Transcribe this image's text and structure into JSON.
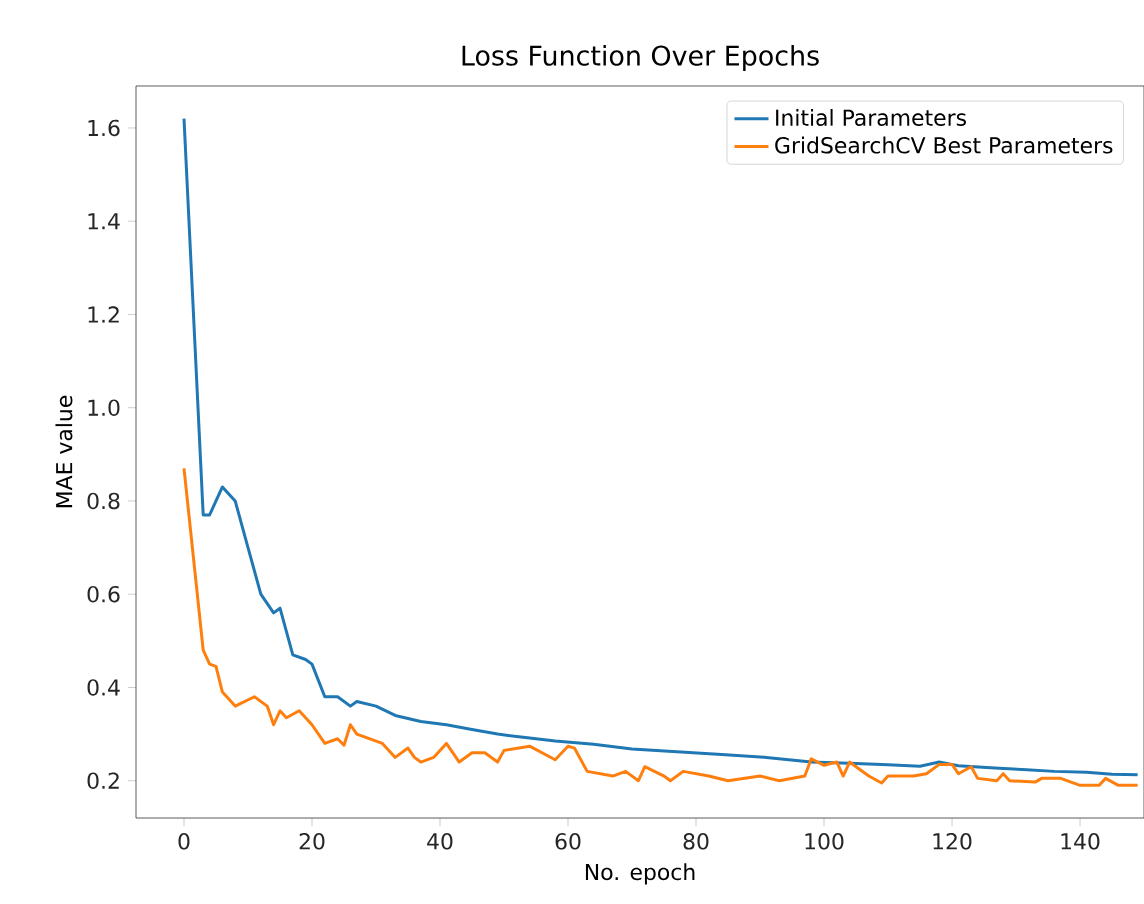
{
  "chart_data": {
    "type": "line",
    "title": "Loss Function Over Epochs",
    "xlabel": "No. epoch",
    "ylabel": "MAE value",
    "xlim": [
      -7.5,
      150
    ],
    "ylim": [
      0.12,
      1.69
    ],
    "xticks": [
      0,
      20,
      40,
      60,
      80,
      100,
      120,
      140
    ],
    "yticks": [
      0.2,
      0.4,
      0.6,
      0.8,
      {
        "value": 1.0,
        "label": "1.0"
      },
      1.2,
      1.4,
      1.6
    ],
    "grid": false,
    "legend": "top right",
    "marker": "none",
    "line_style": "solid",
    "series": [
      {
        "name": "Initial Parameters",
        "color": "#1f77b4",
        "x": [
          0,
          3,
          4,
          6,
          8,
          10,
          12,
          14,
          15,
          17,
          19,
          20,
          22,
          24,
          26,
          27,
          30,
          33,
          37,
          41,
          45,
          49,
          53,
          58,
          64,
          70,
          77,
          84,
          91,
          98,
          105,
          110,
          115,
          118,
          121,
          126,
          131,
          136,
          141,
          145,
          149
        ],
        "values": [
          1.62,
          0.77,
          0.77,
          0.83,
          0.8,
          0.7,
          0.6,
          0.56,
          0.57,
          0.47,
          0.46,
          0.45,
          0.38,
          0.38,
          0.36,
          0.37,
          0.36,
          0.34,
          0.327,
          0.32,
          0.31,
          0.3,
          0.293,
          0.285,
          0.278,
          0.268,
          0.262,
          0.256,
          0.25,
          0.24,
          0.237,
          0.234,
          0.231,
          0.24,
          0.232,
          0.228,
          0.224,
          0.22,
          0.218,
          0.214,
          0.213
        ]
      },
      {
        "name": "GridSearchCV Best Parameters",
        "color": "#ff7f0e",
        "x": [
          0,
          3,
          4,
          5,
          6,
          8,
          11,
          13,
          14,
          15,
          16,
          18,
          20,
          22,
          24,
          25,
          26,
          27,
          31,
          33,
          35,
          36,
          37,
          39,
          41,
          43,
          45,
          47,
          49,
          50,
          54,
          58,
          60,
          61,
          63,
          67,
          69,
          71,
          72,
          75,
          76,
          78,
          82,
          85,
          90,
          93,
          97,
          98,
          100,
          102,
          103,
          104,
          107,
          109,
          110,
          114,
          116,
          118,
          120,
          121,
          123,
          124,
          127,
          128,
          129,
          133,
          134,
          137,
          140,
          143,
          144,
          146,
          149
        ],
        "values": [
          0.87,
          0.48,
          0.45,
          0.445,
          0.39,
          0.36,
          0.38,
          0.36,
          0.32,
          0.35,
          0.335,
          0.35,
          0.32,
          0.28,
          0.29,
          0.276,
          0.32,
          0.3,
          0.28,
          0.25,
          0.27,
          0.25,
          0.24,
          0.25,
          0.28,
          0.24,
          0.26,
          0.26,
          0.24,
          0.265,
          0.274,
          0.245,
          0.274,
          0.27,
          0.22,
          0.21,
          0.22,
          0.2,
          0.23,
          0.21,
          0.2,
          0.22,
          0.21,
          0.2,
          0.21,
          0.2,
          0.21,
          0.247,
          0.233,
          0.24,
          0.21,
          0.24,
          0.21,
          0.195,
          0.21,
          0.21,
          0.215,
          0.235,
          0.235,
          0.215,
          0.23,
          0.205,
          0.2,
          0.215,
          0.2,
          0.197,
          0.205,
          0.205,
          0.19,
          0.19,
          0.205,
          0.19,
          0.19
        ]
      }
    ]
  }
}
